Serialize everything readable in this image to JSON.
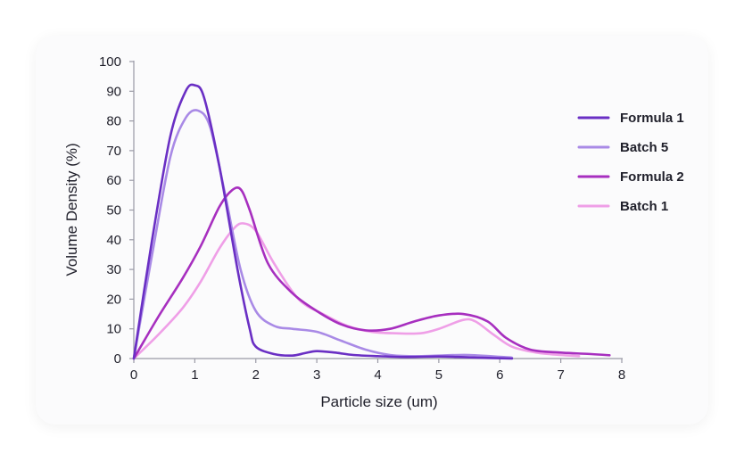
{
  "chart_data": {
    "type": "line",
    "xlabel": "Particle size (um)",
    "ylabel": "Volume Density (%)",
    "xlim": [
      0,
      8
    ],
    "ylim": [
      0,
      100
    ],
    "xticks": [
      "0",
      "1",
      "2",
      "3",
      "4",
      "5",
      "6",
      "7",
      "8"
    ],
    "yticks": [
      "0",
      "10",
      "20",
      "30",
      "40",
      "50",
      "60",
      "70",
      "80",
      "90",
      "100"
    ],
    "legend_position": "right",
    "grid": false,
    "series": [
      {
        "name": "Formula 1",
        "color": "#6a2fc4",
        "points": [
          [
            0,
            0
          ],
          [
            0.3,
            40
          ],
          [
            0.6,
            75
          ],
          [
            0.85,
            90
          ],
          [
            1.0,
            92
          ],
          [
            1.15,
            88
          ],
          [
            1.4,
            65
          ],
          [
            1.7,
            30
          ],
          [
            1.9,
            10
          ],
          [
            2.0,
            4
          ],
          [
            2.3,
            1.5
          ],
          [
            2.6,
            1
          ],
          [
            2.8,
            1.8
          ],
          [
            3.0,
            2.5
          ],
          [
            3.3,
            2
          ],
          [
            3.6,
            1.2
          ],
          [
            4.0,
            0.8
          ],
          [
            4.5,
            0.5
          ],
          [
            5.0,
            0.7
          ],
          [
            5.5,
            0.4
          ],
          [
            6.2,
            0
          ]
        ]
      },
      {
        "name": "Batch 5",
        "color": "#a98ae6",
        "points": [
          [
            0,
            0
          ],
          [
            0.3,
            35
          ],
          [
            0.6,
            68
          ],
          [
            0.85,
            81
          ],
          [
            1.05,
            83.5
          ],
          [
            1.25,
            78
          ],
          [
            1.5,
            55
          ],
          [
            1.75,
            30
          ],
          [
            2.0,
            16
          ],
          [
            2.3,
            11
          ],
          [
            2.6,
            10
          ],
          [
            3.0,
            9
          ],
          [
            3.4,
            6
          ],
          [
            3.8,
            3
          ],
          [
            4.2,
            1.2
          ],
          [
            4.6,
            0.8
          ],
          [
            5.0,
            1
          ],
          [
            5.5,
            1.2
          ],
          [
            6.2,
            0.3
          ]
        ]
      },
      {
        "name": "Formula 2",
        "color": "#a72fbf",
        "points": [
          [
            0,
            0
          ],
          [
            0.4,
            14
          ],
          [
            0.8,
            27
          ],
          [
            1.1,
            38
          ],
          [
            1.4,
            51
          ],
          [
            1.6,
            56.5
          ],
          [
            1.75,
            57
          ],
          [
            1.9,
            50
          ],
          [
            2.2,
            32
          ],
          [
            2.6,
            22
          ],
          [
            3.0,
            16
          ],
          [
            3.4,
            11.5
          ],
          [
            3.8,
            9.5
          ],
          [
            4.2,
            10
          ],
          [
            4.6,
            12.5
          ],
          [
            5.0,
            14.5
          ],
          [
            5.4,
            15
          ],
          [
            5.8,
            12.5
          ],
          [
            6.1,
            7
          ],
          [
            6.5,
            3
          ],
          [
            7.0,
            2
          ],
          [
            7.5,
            1.5
          ],
          [
            7.8,
            1.1
          ]
        ]
      },
      {
        "name": "Batch 1",
        "color": "#ef9fe7",
        "points": [
          [
            0,
            0
          ],
          [
            0.4,
            8
          ],
          [
            0.8,
            17
          ],
          [
            1.1,
            26
          ],
          [
            1.4,
            37
          ],
          [
            1.65,
            44
          ],
          [
            1.8,
            45.5
          ],
          [
            2.0,
            43
          ],
          [
            2.3,
            32
          ],
          [
            2.7,
            20
          ],
          [
            3.1,
            15
          ],
          [
            3.5,
            11
          ],
          [
            3.9,
            9
          ],
          [
            4.3,
            8.5
          ],
          [
            4.7,
            8.5
          ],
          [
            5.0,
            10
          ],
          [
            5.4,
            13
          ],
          [
            5.6,
            12.5
          ],
          [
            5.9,
            8
          ],
          [
            6.2,
            4
          ],
          [
            6.6,
            2
          ],
          [
            7.0,
            1.2
          ],
          [
            7.3,
            0.8
          ]
        ]
      }
    ]
  }
}
